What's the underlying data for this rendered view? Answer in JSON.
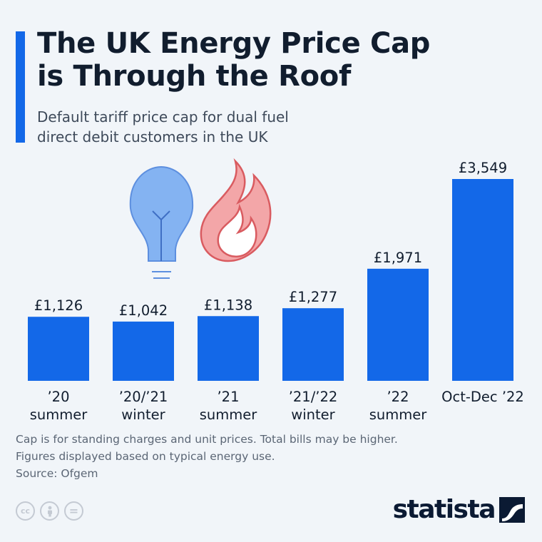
{
  "header": {
    "title_line1": "The UK Energy Price Cap",
    "title_line2": "is Through the Roof",
    "subtitle_line1": "Default tariff price cap for dual fuel",
    "subtitle_line2": "direct debit customers in the UK"
  },
  "chart_data": {
    "type": "bar",
    "categories": [
      [
        "’20",
        "summer"
      ],
      [
        "’20/’21",
        "winter"
      ],
      [
        "’21",
        "summer"
      ],
      [
        "’21/’22",
        "winter"
      ],
      [
        "’22",
        "summer"
      ],
      [
        "Oct-Dec ’22"
      ]
    ],
    "values": [
      1126,
      1042,
      1138,
      1277,
      1971,
      3549
    ],
    "value_labels": [
      "£1,126",
      "£1,042",
      "£1,138",
      "£1,277",
      "£1,971",
      "£3,549"
    ],
    "ylim": [
      0,
      3549
    ],
    "grid": false,
    "legend": "none"
  },
  "colors": {
    "bar": "#1368e8",
    "accent": "#1368e8",
    "bulb": "#7fb0f0",
    "flame": "#e88a8d"
  },
  "icons": [
    "light-bulb-icon",
    "flame-icon",
    "cc-icon",
    "attribution-icon",
    "no-derivatives-icon",
    "statista-logo-icon"
  ],
  "footer": {
    "note_line1": "Cap is for standing charges and unit prices. Total bills may be higher.",
    "note_line2": "Figures displayed based on typical energy use.",
    "source": "Source: Ofgem",
    "brand": "statista",
    "license_cc": "cc",
    "license_eq": "="
  }
}
